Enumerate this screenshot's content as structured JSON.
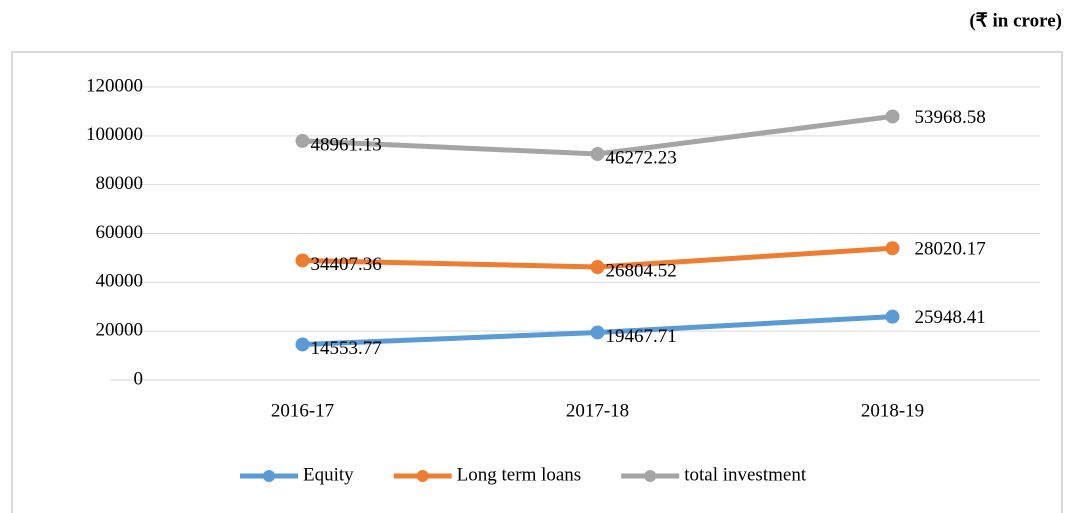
{
  "unit_note": "(₹ in crore)",
  "chart_data": {
    "type": "line",
    "stacked": true,
    "categories": [
      "2016-17",
      "2017-18",
      "2018-19"
    ],
    "series": [
      {
        "name": "Equity",
        "color": "#5b9bd5",
        "values": [
          14553.77,
          19467.71,
          25948.41
        ]
      },
      {
        "name": "Long term loans",
        "color": "#ed7d31",
        "values": [
          34407.36,
          26804.52,
          28020.17
        ]
      },
      {
        "name": "total investment",
        "color": "#a5a5a5",
        "values": [
          48961.13,
          46272.23,
          53968.58
        ]
      }
    ],
    "ylim": [
      0,
      120000
    ],
    "yticks": [
      0,
      20000,
      40000,
      60000,
      80000,
      100000,
      120000
    ],
    "grid": true,
    "legend": "bottom"
  }
}
